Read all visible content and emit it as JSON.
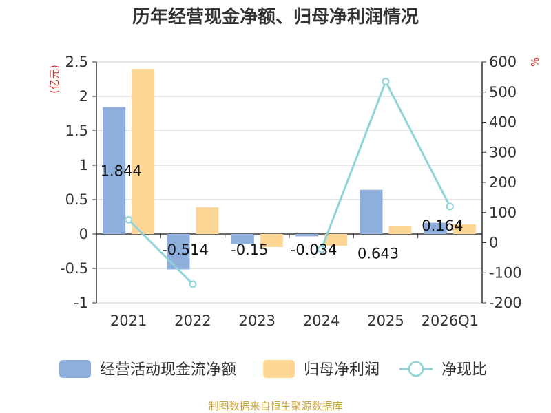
{
  "title": "历年经营现金净额、归母净利润情况",
  "source": "制图数据来自恒生聚源数据库",
  "chart_data": {
    "type": "bar",
    "categories": [
      "2021",
      "2022",
      "2023",
      "2024",
      "2025",
      "2026Q1"
    ],
    "y_left": {
      "unit": "(亿元)",
      "min": -1,
      "max": 2.5,
      "ticks": [
        "2.5",
        "2",
        "1.5",
        "1",
        "0.5",
        "0",
        "-0.5",
        "-1"
      ]
    },
    "y_right": {
      "unit": "%",
      "min": -200,
      "max": 600,
      "ticks": [
        "600",
        "500",
        "400",
        "300",
        "200",
        "100",
        "0",
        "-100",
        "-200"
      ]
    },
    "grid": true,
    "legend": "bottom",
    "series": [
      {
        "name": "经营活动现金流净额",
        "type": "bar",
        "axis": "left",
        "color": "#8eaedc",
        "values": [
          1.844,
          -0.514,
          -0.15,
          -0.034,
          0.643,
          0.164
        ],
        "labels": [
          "1.844",
          "-0.514",
          "-0.15",
          "-0.034",
          "0.643",
          "0.164"
        ]
      },
      {
        "name": "归母净利润",
        "type": "bar",
        "axis": "left",
        "color": "#fdd696",
        "values": [
          2.4,
          0.39,
          -0.19,
          -0.17,
          0.12,
          0.14
        ]
      },
      {
        "name": "净现比",
        "type": "line",
        "axis": "right",
        "color": "#8fd3d8",
        "values": [
          76,
          -138,
          null,
          -22,
          535,
          120
        ]
      }
    ]
  }
}
